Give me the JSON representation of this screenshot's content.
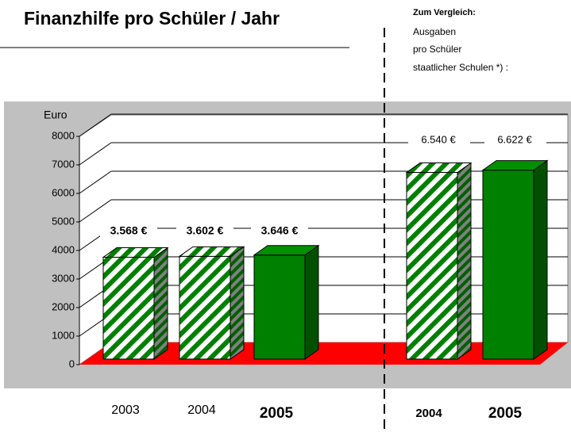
{
  "chart_data": {
    "type": "bar3d",
    "title": "Finanzhilfe pro Schüler / Jahr",
    "note": [
      "Zum Vergleich:",
      "Ausgaben",
      "pro Schüler",
      "staatlicher Schulen *) :"
    ],
    "y_label": "Euro",
    "categories": [
      "2003",
      "2004",
      "2005",
      "2004",
      "2005"
    ],
    "values": [
      3568,
      3602,
      3646,
      6540,
      6622
    ],
    "value_labels": [
      "3.568 €",
      "3.602 €",
      "3.646 €",
      "6.540 €",
      "6.622 €"
    ],
    "fills": [
      "striped",
      "striped",
      "solid",
      "striped",
      "solid"
    ],
    "category_bold": [
      false,
      false,
      true,
      true,
      true
    ],
    "color": "#008000",
    "floor_color": "#ff0000",
    "ylim": [
      0,
      8000
    ],
    "yticks": [
      0,
      1000,
      2000,
      3000,
      4000,
      5000,
      6000,
      7000,
      8000
    ],
    "grid": true
  }
}
